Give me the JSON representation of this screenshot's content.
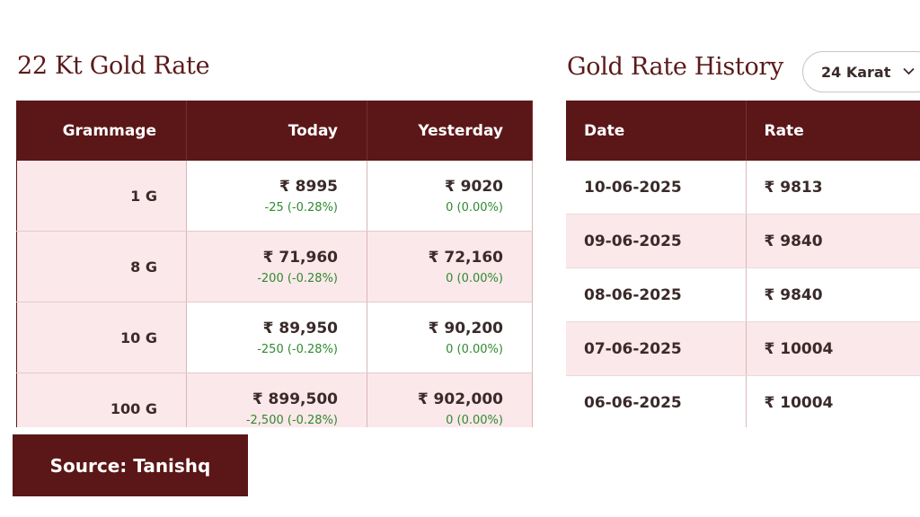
{
  "gold_rate": {
    "heading": "22 Kt Gold Rate",
    "columns": [
      "Grammage",
      "Today",
      "Yesterday"
    ],
    "rows": [
      {
        "grammage": "1 G",
        "today_price": "₹ 8995",
        "today_change": "-25 (-0.28%)",
        "yesterday_price": "₹ 9020",
        "yesterday_change": "0 (0.00%)"
      },
      {
        "grammage": "8 G",
        "today_price": "₹ 71,960",
        "today_change": "-200 (-0.28%)",
        "yesterday_price": "₹ 72,160",
        "yesterday_change": "0 (0.00%)"
      },
      {
        "grammage": "10 G",
        "today_price": "₹ 89,950",
        "today_change": "-250 (-0.28%)",
        "yesterday_price": "₹ 90,200",
        "yesterday_change": "0 (0.00%)"
      },
      {
        "grammage": "100 G",
        "today_price": "₹ 899,500",
        "today_change": "-2,500 (-0.28%)",
        "yesterday_price": "₹ 902,000",
        "yesterday_change": "0 (0.00%)"
      }
    ]
  },
  "history": {
    "heading": "Gold Rate History",
    "karat_select": "24 Karat",
    "columns": [
      "Date",
      "Rate"
    ],
    "rows": [
      {
        "date": "10-06-2025",
        "rate": "₹ 9813"
      },
      {
        "date": "09-06-2025",
        "rate": "₹ 9840"
      },
      {
        "date": "08-06-2025",
        "rate": "₹ 9840"
      },
      {
        "date": "07-06-2025",
        "rate": "₹ 10004"
      },
      {
        "date": "06-06-2025",
        "rate": "₹ 10004"
      }
    ]
  },
  "source": "Source: Tanishq",
  "colors": {
    "primary": "#5b1717",
    "row_pink": "#fbe8ea",
    "change_green": "#2f8a2f"
  }
}
